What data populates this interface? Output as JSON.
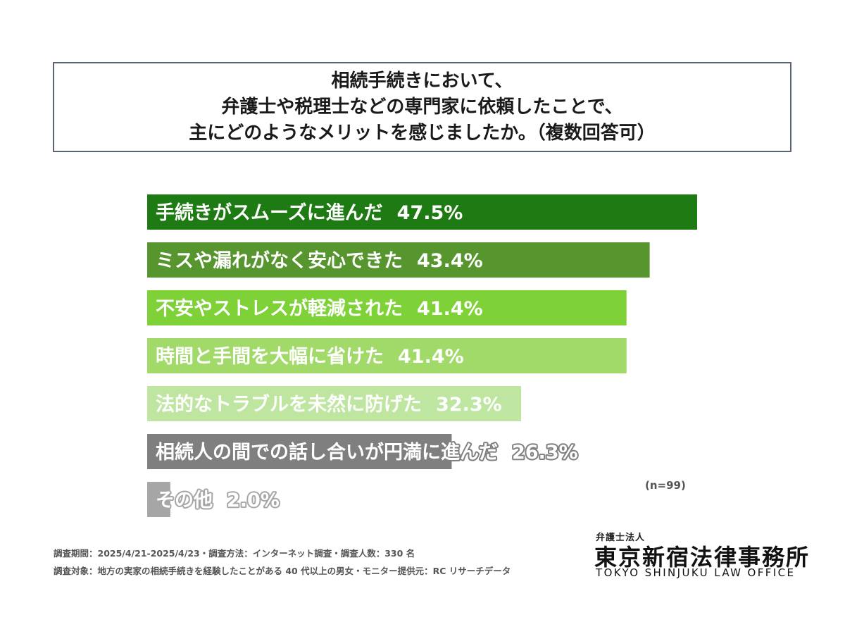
{
  "title": {
    "lines": [
      "相続手続きにおいて、",
      "弁護士や税理士などの専門家に依頼したことで、",
      "主にどのようなメリットを感じましたか。（複数回答可）"
    ]
  },
  "chart_data": {
    "type": "bar",
    "orientation": "horizontal",
    "categories": [
      "手続きがスムーズに進んだ",
      "ミスや漏れがなく安心できた",
      "不安やストレスが軽減された",
      "時間と手間を大幅に省けた",
      "法的なトラブルを未然に防げた",
      "相続人の間での話し合いが円満に進んだ",
      "その他"
    ],
    "values": [
      47.5,
      43.4,
      41.4,
      41.4,
      32.3,
      26.3,
      2.0
    ],
    "value_labels": [
      "47.5%",
      "43.4%",
      "41.4%",
      "41.4%",
      "32.3%",
      "26.3%",
      "2.0%"
    ],
    "colors": [
      "#1e7a12",
      "#57962e",
      "#7ed237",
      "#a2da6a",
      "#bfe6a1",
      "#7f7f7f",
      "#a6a6a6"
    ],
    "xlim": [
      0,
      47.5
    ],
    "grid": false,
    "legend": "none"
  },
  "note": "(n=99)",
  "footnotes": [
    "調査期間：2025/4/21-2025/4/23・調査方法：インターネット調査・調査人数：330 名",
    "調査対象：地方の実家の相続手続きを経験したことがある 40 代以上の男女・モニター提供元：RC リサーチデータ"
  ],
  "logo": {
    "sub": "弁護士法人",
    "main": "東京新宿法律事務所",
    "english": "TOKYO SHINJUKU LAW OFFICE"
  }
}
